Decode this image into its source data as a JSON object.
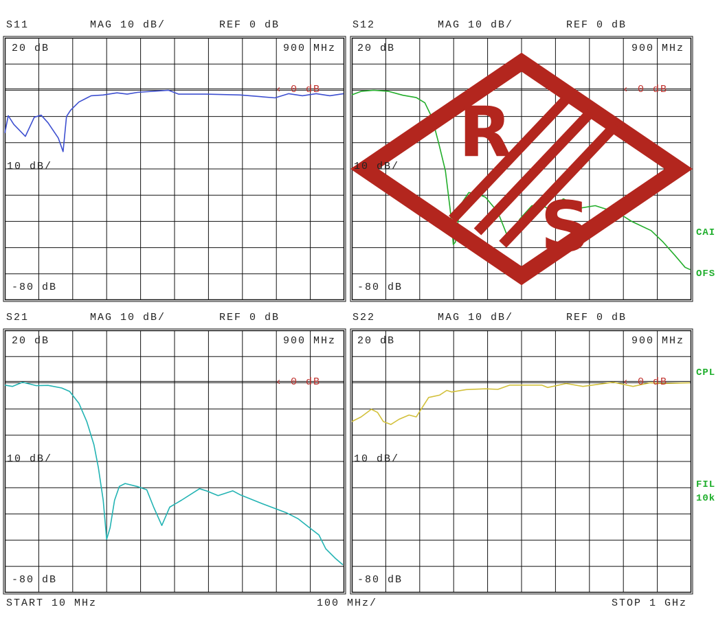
{
  "panels": [
    {
      "param": "S11",
      "format": "MAG 10 dB/",
      "ref": "REF 0 dB",
      "top_label": "20 dB",
      "scale_label": "10 dB/",
      "bottom_label": "-80 dB",
      "marker_freq": "900 MHz",
      "ref_marker": "0 dB",
      "color": "#3d4fd0"
    },
    {
      "param": "S12",
      "format": "MAG 10 dB/",
      "ref": "REF 0 dB",
      "top_label": "20 dB",
      "scale_label": "10 dB/",
      "bottom_label": "-80 dB",
      "marker_freq": "900 MHz",
      "ref_marker": "0 dB",
      "color": "#22ad2a"
    },
    {
      "param": "S21",
      "format": "MAG 10 dB/",
      "ref": "REF 0 dB",
      "top_label": "20 dB",
      "scale_label": "10 dB/",
      "bottom_label": "-80 dB",
      "marker_freq": "900 MHz",
      "ref_marker": "0 dB",
      "color": "#22b3b3"
    },
    {
      "param": "S22",
      "format": "MAG 10 dB/",
      "ref": "REF 0 dB",
      "top_label": "20 dB",
      "scale_label": "10 dB/",
      "bottom_label": "-80 dB",
      "marker_freq": "900 MHz",
      "ref_marker": "0 dB",
      "color": "#d2c03a"
    }
  ],
  "footer": {
    "start": "START 10 MHz",
    "span": "100 MHz/",
    "stop": "STOP 1 GHz"
  },
  "side_labels": {
    "cal": "CAI",
    "ofs": "OFS",
    "cpl": "CPL",
    "fil": "FIL",
    "fil_bw": "10k"
  },
  "logo": "R&S",
  "colors": {
    "text": "#222222",
    "ref_marker": "#c0302c",
    "status": "#1fae2c"
  },
  "chart_data": [
    {
      "type": "line",
      "title": "S11",
      "xlim": [
        10,
        1000
      ],
      "ylim": [
        -80,
        20
      ],
      "grid": true,
      "x_unit": "MHz",
      "y_unit": "dB",
      "series": [
        {
          "x": [
            10,
            20,
            36,
            70,
            96,
            116,
            136,
            166,
            180,
            190,
            202,
            226,
            262,
            297,
            337,
            367,
            397,
            487,
            517,
            597,
            697,
            798,
            838,
            878,
            918,
            958,
            998
          ],
          "y": [
            -16.3,
            -9.7,
            -13,
            -17.6,
            -10.3,
            -9.5,
            -12.4,
            -18.2,
            -23.4,
            -10,
            -7.6,
            -4.5,
            -2.1,
            -1.8,
            -1,
            -1.5,
            -0.8,
            0,
            -1.5,
            -1.5,
            -1.8,
            -2.9,
            -1.3,
            -2.1,
            -1.3,
            -2.1,
            -1.3
          ]
        }
      ]
    },
    {
      "type": "line",
      "title": "S12",
      "xlim": [
        10,
        1000
      ],
      "ylim": [
        -80,
        20
      ],
      "grid": true,
      "x_unit": "MHz",
      "y_unit": "dB",
      "series": [
        {
          "x": [
            10,
            38,
            74,
            116,
            159,
            198,
            223,
            244,
            265,
            283,
            297,
            306,
            312,
            326,
            351,
            372,
            400,
            436,
            468,
            500,
            535,
            564,
            585,
            627,
            677,
            720,
            741,
            784,
            826,
            883,
            918,
            954,
            982,
            997
          ],
          "y": [
            -1.75,
            -0.4,
            0,
            -0.4,
            -1.9,
            -2.8,
            -4.8,
            -10.5,
            -21,
            -30.7,
            -45.6,
            -58.8,
            -57.9,
            -43.9,
            -39,
            -39.3,
            -40.8,
            -46.5,
            -57,
            -49.1,
            -44,
            -43.7,
            -45.4,
            -41.4,
            -44.9,
            -44,
            -44.9,
            -46.5,
            -50,
            -53.5,
            -57.9,
            -63.2,
            -67.5,
            -68.4
          ]
        }
      ]
    },
    {
      "type": "line",
      "title": "S21",
      "xlim": [
        10,
        1000
      ],
      "ylim": [
        -80,
        20
      ],
      "grid": true,
      "x_unit": "MHz",
      "y_unit": "dB",
      "series": [
        {
          "x": [
            10,
            32,
            62,
            102,
            136,
            176,
            199,
            226,
            249,
            270,
            283,
            297,
            307,
            317,
            330,
            344,
            361,
            398,
            424,
            444,
            468,
            491,
            525,
            578,
            598,
            632,
            675,
            698,
            765,
            832,
            865,
            899,
            926,
            946,
            973,
            996
          ],
          "y": [
            -0.9,
            -1.4,
            0.2,
            -1.1,
            -1,
            -2,
            -3.3,
            -7.8,
            -14.8,
            -23.6,
            -32.4,
            -44.8,
            -59.7,
            -55.3,
            -44.8,
            -39.5,
            -38.4,
            -39.6,
            -40.8,
            -47.4,
            -54.4,
            -47.4,
            -44.8,
            -40.4,
            -41.2,
            -43,
            -41.2,
            -42.8,
            -46.3,
            -49.6,
            -51.8,
            -55.3,
            -58,
            -63.3,
            -66.8,
            -69.4
          ]
        }
      ]
    },
    {
      "type": "line",
      "title": "S22",
      "xlim": [
        10,
        1000
      ],
      "ylim": [
        -80,
        20
      ],
      "grid": true,
      "x_unit": "MHz",
      "y_unit": "dB",
      "series": [
        {
          "x": [
            10,
            37,
            67,
            85,
            102,
            124,
            148,
            177,
            198,
            234,
            266,
            287,
            301,
            344,
            400,
            436,
            471,
            564,
            581,
            635,
            684,
            734,
            773,
            830,
            880,
            915,
            996
          ],
          "y": [
            -14.8,
            -13,
            -10.1,
            -11.3,
            -14.8,
            -15.9,
            -13.9,
            -12.3,
            -13,
            -5.6,
            -4.7,
            -2.9,
            -3.5,
            -2.6,
            -2.3,
            -2.5,
            -0.9,
            -0.9,
            -1.8,
            -0.3,
            -1.4,
            -0.5,
            0.2,
            -1.4,
            0,
            -0.3,
            0
          ]
        }
      ]
    }
  ]
}
